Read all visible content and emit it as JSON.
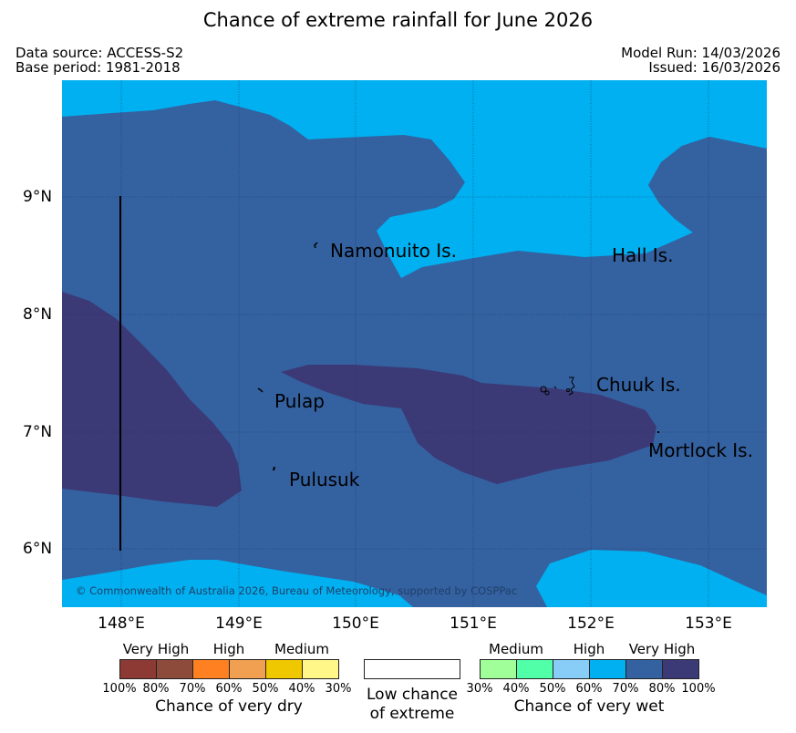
{
  "title": "Chance of extreme rainfall for June 2026",
  "meta": {
    "data_source": "Data source: ACCESS-S2",
    "base_period": "Base period: 1981-2018",
    "model_run": "Model Run: 14/03/2026",
    "issued": "Issued: 16/03/2026"
  },
  "map": {
    "copyright": "© Commonwealth of Australia 2026, Bureau of Meteorology, supported by COSPPac",
    "x_ticks": [
      "148°E",
      "149°E",
      "150°E",
      "151°E",
      "152°E",
      "153°E"
    ],
    "y_ticks": [
      "9°N",
      "8°N",
      "7°N",
      "6°N"
    ],
    "places": {
      "namonuito": "Namonuito Is.",
      "hall": "Hall Is.",
      "chuuk": "Chuuk Is.",
      "pulap": "Pulap",
      "pulusuk": "Pulusuk",
      "mortlock": "Mortlock Is."
    },
    "colors": {
      "wet_70_80": "#3461a0",
      "wet_60_70": "#00b0f0",
      "wet_80_100": "#3b3a76"
    }
  },
  "legend": {
    "dry": {
      "labels": [
        "Very High",
        "High",
        "Medium"
      ],
      "pcts": [
        "100%",
        "80%",
        "70%",
        "60%",
        "50%",
        "40%",
        "30%"
      ],
      "colors": [
        "#8c3a33",
        "#8c4b3b",
        "#ff8020",
        "#f0a050",
        "#f0c800",
        "#fff888"
      ],
      "caption": "Chance of very dry"
    },
    "low": {
      "line1": "Low chance",
      "line2": "of extreme"
    },
    "wet": {
      "labels": [
        "Medium",
        "High",
        "Very High"
      ],
      "pcts": [
        "30%",
        "40%",
        "50%",
        "60%",
        "70%",
        "80%",
        "100%"
      ],
      "colors": [
        "#a0ff98",
        "#50ffa8",
        "#88ccf8",
        "#00b0f0",
        "#3461a0",
        "#3b3a76"
      ],
      "caption": "Chance of very wet"
    }
  }
}
